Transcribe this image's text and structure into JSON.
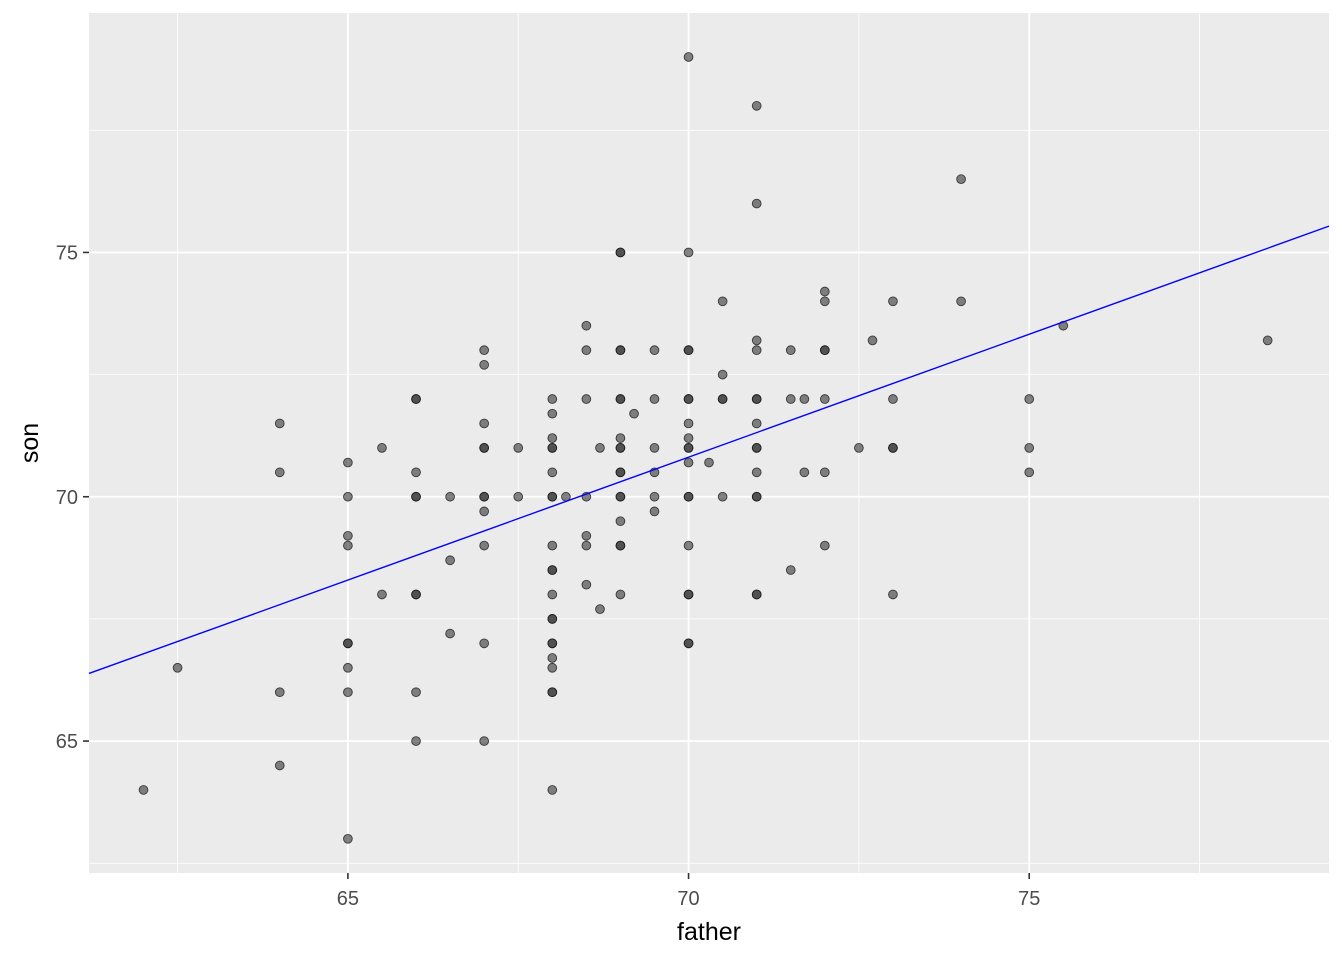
{
  "chart_data": {
    "type": "scatter",
    "title": "",
    "xlabel": "father",
    "ylabel": "son",
    "xlim": [
      61.2,
      79.4
    ],
    "ylim": [
      62.3,
      79.9
    ],
    "x_ticks": [
      65,
      70,
      75
    ],
    "y_ticks": [
      65,
      70,
      75
    ],
    "x_tick_labels": [
      "65",
      "70",
      "75"
    ],
    "y_tick_labels": [
      "65",
      "70",
      "75"
    ],
    "grid": true,
    "panel_background": "#ebebeb",
    "grid_color": "#ffffff",
    "point_color": "#333333",
    "point_opacity": 0.6,
    "fit_line": {
      "type": "linear",
      "color": "#0000ff",
      "intercept": 35.6,
      "slope": 0.503
    },
    "points": [
      [
        62,
        64
      ],
      [
        62.5,
        66.5
      ],
      [
        64,
        71.5
      ],
      [
        64,
        70.5
      ],
      [
        64,
        66
      ],
      [
        64,
        64.5
      ],
      [
        65,
        70.7
      ],
      [
        65,
        70
      ],
      [
        65,
        69.2
      ],
      [
        65,
        69
      ],
      [
        65,
        67
      ],
      [
        65,
        67
      ],
      [
        65,
        66.5
      ],
      [
        65,
        66
      ],
      [
        65,
        63
      ],
      [
        65.5,
        71
      ],
      [
        65.5,
        68
      ],
      [
        66,
        72
      ],
      [
        66,
        72
      ],
      [
        66,
        70.5
      ],
      [
        66,
        70
      ],
      [
        66,
        70
      ],
      [
        66,
        68
      ],
      [
        66,
        68
      ],
      [
        66,
        66
      ],
      [
        66,
        65
      ],
      [
        66.5,
        70
      ],
      [
        66.5,
        68.7
      ],
      [
        66.5,
        67.2
      ],
      [
        67,
        73
      ],
      [
        67,
        72.7
      ],
      [
        67,
        71.5
      ],
      [
        67,
        71
      ],
      [
        67,
        71
      ],
      [
        67,
        70
      ],
      [
        67,
        70
      ],
      [
        67,
        69.7
      ],
      [
        67,
        69
      ],
      [
        67,
        67
      ],
      [
        67,
        65
      ],
      [
        67.5,
        71
      ],
      [
        67.5,
        70
      ],
      [
        68,
        72
      ],
      [
        68,
        71.7
      ],
      [
        68,
        71.2
      ],
      [
        68,
        71
      ],
      [
        68,
        71
      ],
      [
        68,
        70.5
      ],
      [
        68,
        70
      ],
      [
        68,
        70
      ],
      [
        68,
        69
      ],
      [
        68,
        68.5
      ],
      [
        68,
        68.5
      ],
      [
        68,
        68
      ],
      [
        68,
        67.5
      ],
      [
        68,
        67.5
      ],
      [
        68,
        67
      ],
      [
        68,
        67
      ],
      [
        68,
        66.7
      ],
      [
        68,
        66.5
      ],
      [
        68,
        66
      ],
      [
        68,
        66
      ],
      [
        68,
        64
      ],
      [
        68.2,
        70
      ],
      [
        68.5,
        73.5
      ],
      [
        68.5,
        73
      ],
      [
        68.5,
        72
      ],
      [
        68.5,
        70
      ],
      [
        68.5,
        69.2
      ],
      [
        68.5,
        69
      ],
      [
        68.5,
        68.2
      ],
      [
        68.7,
        71
      ],
      [
        68.7,
        67.7
      ],
      [
        69,
        75
      ],
      [
        69,
        75
      ],
      [
        69,
        73
      ],
      [
        69,
        73
      ],
      [
        69,
        72
      ],
      [
        69,
        72
      ],
      [
        69,
        71.2
      ],
      [
        69,
        71
      ],
      [
        69,
        71
      ],
      [
        69,
        70.5
      ],
      [
        69,
        70.5
      ],
      [
        69,
        70
      ],
      [
        69,
        70
      ],
      [
        69,
        69.5
      ],
      [
        69,
        69
      ],
      [
        69,
        69
      ],
      [
        69,
        68
      ],
      [
        69.2,
        71.7
      ],
      [
        69.5,
        73
      ],
      [
        69.5,
        72
      ],
      [
        69.5,
        71
      ],
      [
        69.5,
        70.5
      ],
      [
        69.5,
        70
      ],
      [
        69.5,
        69.7
      ],
      [
        70,
        79
      ],
      [
        70,
        75
      ],
      [
        70,
        73
      ],
      [
        70,
        73
      ],
      [
        70,
        72
      ],
      [
        70,
        72
      ],
      [
        70,
        71.5
      ],
      [
        70,
        71.2
      ],
      [
        70,
        71
      ],
      [
        70,
        71
      ],
      [
        70,
        70.7
      ],
      [
        70,
        70
      ],
      [
        70,
        70
      ],
      [
        70,
        69
      ],
      [
        70,
        68
      ],
      [
        70,
        68
      ],
      [
        70,
        67
      ],
      [
        70,
        67
      ],
      [
        70.3,
        70.7
      ],
      [
        70.5,
        74
      ],
      [
        70.5,
        72.5
      ],
      [
        70.5,
        72
      ],
      [
        70.5,
        72
      ],
      [
        70.5,
        70
      ],
      [
        71,
        78
      ],
      [
        71,
        76
      ],
      [
        71,
        73.2
      ],
      [
        71,
        73
      ],
      [
        71,
        72
      ],
      [
        71,
        72
      ],
      [
        71,
        71.5
      ],
      [
        71,
        71
      ],
      [
        71,
        71
      ],
      [
        71,
        70.5
      ],
      [
        71,
        70
      ],
      [
        71,
        70
      ],
      [
        71,
        68
      ],
      [
        71,
        68
      ],
      [
        71.5,
        73
      ],
      [
        71.5,
        72
      ],
      [
        71.5,
        68.5
      ],
      [
        71.7,
        72
      ],
      [
        71.7,
        70.5
      ],
      [
        72,
        74.2
      ],
      [
        72,
        74
      ],
      [
        72,
        73
      ],
      [
        72,
        73
      ],
      [
        72,
        72
      ],
      [
        72,
        70.5
      ],
      [
        72,
        69
      ],
      [
        72.5,
        71
      ],
      [
        72.7,
        73.2
      ],
      [
        73,
        74
      ],
      [
        73,
        72
      ],
      [
        73,
        71
      ],
      [
        73,
        71
      ],
      [
        73,
        68
      ],
      [
        74,
        76.5
      ],
      [
        74,
        74
      ],
      [
        75,
        72
      ],
      [
        75,
        71
      ],
      [
        75,
        70.5
      ],
      [
        75.5,
        73.5
      ],
      [
        78.5,
        73.2
      ]
    ]
  }
}
